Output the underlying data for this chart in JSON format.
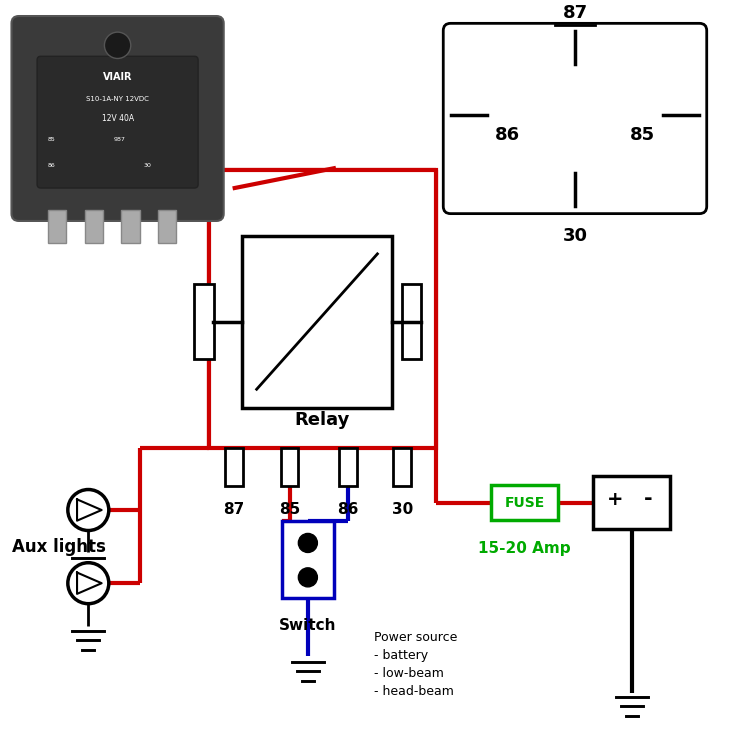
{
  "bg_color": "#ffffff",
  "wire_red": "#cc0000",
  "wire_black": "#000000",
  "wire_blue": "#0000bb",
  "fuse_color": "#00aa00",
  "relay_label": "Relay",
  "fuse_label": "FUSE",
  "amp_label": "15-20 Amp",
  "aux_label": "Aux lights",
  "switch_label": "Switch",
  "power_label": "Power source\n- battery\n- low-beam\n- head-beam",
  "pin_labels": [
    "87",
    "85",
    "86",
    "30"
  ]
}
